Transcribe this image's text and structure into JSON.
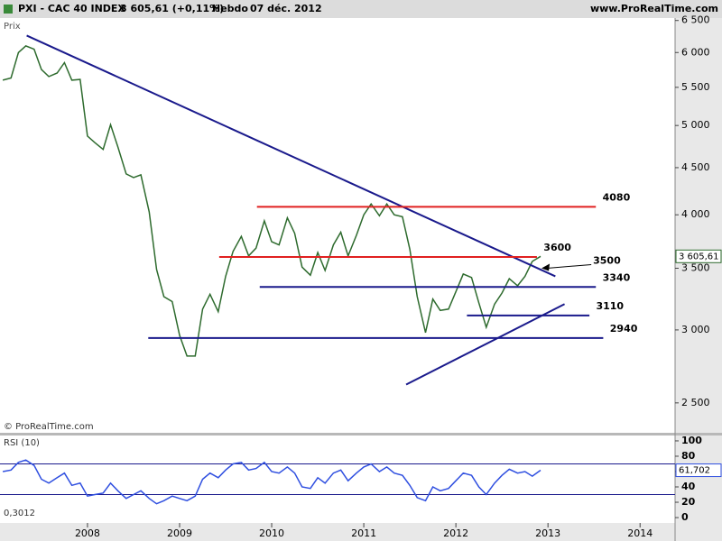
{
  "chart_data": [
    {
      "type": "line",
      "title": "PXI - CAC 40 INDEX",
      "quote": "3 605,61 (+0,11%)",
      "period": "Hebdo",
      "date": "07 déc. 2012",
      "site": "www.ProRealTime.com",
      "ylabel": "Prix",
      "watermark": "© ProRealTime.com",
      "log_scale": true,
      "ylim": [
        2320,
        6540
      ],
      "xlim": [
        2007.05,
        2014.38
      ],
      "yticks": [
        {
          "value": 2500,
          "label": "2 500"
        },
        {
          "value": 3000,
          "label": "3 000"
        },
        {
          "value": 3500,
          "label": "3 500"
        },
        {
          "value": 4000,
          "label": "4 000"
        },
        {
          "value": 4500,
          "label": "4 500"
        },
        {
          "value": 5000,
          "label": "5 000"
        },
        {
          "value": 5500,
          "label": "5 500"
        },
        {
          "value": 6000,
          "label": "6 000"
        },
        {
          "value": 6500,
          "label": "6 500"
        }
      ],
      "xticks": [
        2008,
        2009,
        2010,
        2011,
        2012,
        2013,
        2014
      ],
      "last_label": "3 605,61",
      "x": [
        2007.08,
        2007.17,
        2007.25,
        2007.33,
        2007.42,
        2007.5,
        2007.58,
        2007.67,
        2007.75,
        2007.83,
        2007.92,
        2008,
        2008.08,
        2008.17,
        2008.25,
        2008.33,
        2008.42,
        2008.5,
        2008.58,
        2008.67,
        2008.75,
        2008.83,
        2008.92,
        2009,
        2009.08,
        2009.17,
        2009.25,
        2009.33,
        2009.42,
        2009.5,
        2009.58,
        2009.67,
        2009.75,
        2009.83,
        2009.92,
        2010,
        2010.08,
        2010.17,
        2010.25,
        2010.33,
        2010.42,
        2010.5,
        2010.58,
        2010.67,
        2010.75,
        2010.83,
        2010.92,
        2011,
        2011.08,
        2011.17,
        2011.25,
        2011.33,
        2011.42,
        2011.5,
        2011.58,
        2011.67,
        2011.75,
        2011.83,
        2011.92,
        2012,
        2012.08,
        2012.17,
        2012.25,
        2012.33,
        2012.42,
        2012.5,
        2012.58,
        2012.67,
        2012.75,
        2012.83,
        2012.92
      ],
      "series": [
        {
          "name": "CAC 40",
          "color": "#2e6b2e",
          "values": [
            5600,
            5630,
            6000,
            6100,
            6050,
            5750,
            5650,
            5700,
            5850,
            5600,
            5610,
            4870,
            4790,
            4710,
            5010,
            4740,
            4430,
            4390,
            4420,
            4030,
            3490,
            3260,
            3220,
            2960,
            2810,
            2810,
            3160,
            3280,
            3140,
            3430,
            3650,
            3790,
            3610,
            3680,
            3940,
            3740,
            3710,
            3970,
            3820,
            3510,
            3440,
            3640,
            3480,
            3710,
            3830,
            3610,
            3800,
            4000,
            4110,
            3990,
            4110,
            4000,
            3980,
            3670,
            3260,
            2980,
            3240,
            3150,
            3160,
            3300,
            3450,
            3420,
            3210,
            3020,
            3200,
            3290,
            3410,
            3350,
            3430,
            3560,
            3605.61
          ]
        }
      ],
      "levels": [
        {
          "value": 4080,
          "x": [
            2009.84,
            2013.52
          ],
          "color": "#e02020"
        },
        {
          "value": 3600,
          "x": [
            2009.43,
            2012.88
          ],
          "color": "#e02020"
        },
        {
          "value": 3500,
          "arrow": [
            2013.47,
            2012.93
          ],
          "color": "#000000"
        },
        {
          "value": 3340,
          "x": [
            2009.87,
            2013.52
          ],
          "color": "#1a1a8c"
        },
        {
          "value": 3110,
          "x": [
            2012.12,
            2013.45
          ],
          "color": "#1a1a8c"
        },
        {
          "value": 2940,
          "x": [
            2008.66,
            2013.6
          ],
          "color": "#1a1a8c"
        }
      ],
      "trendlines": [
        {
          "x": [
            2007.34,
            2013.08
          ],
          "y": [
            6260,
            3430
          ],
          "color": "#1a1a8c"
        },
        {
          "x": [
            2011.46,
            2013.18
          ],
          "y": [
            2617,
            3200
          ],
          "color": "#1a1a8c"
        }
      ]
    },
    {
      "type": "line",
      "title": "RSI (10)",
      "footer": "0,3012",
      "ylim": [
        -7,
        107
      ],
      "xlim": [
        2007.05,
        2014.38
      ],
      "yticks": [
        0,
        20,
        40,
        60,
        80,
        100
      ],
      "bands": [
        30,
        70
      ],
      "last_label": "61,702",
      "series": [
        {
          "name": "RSI",
          "color": "#2f4fe0",
          "values": [
            60,
            62,
            72,
            75,
            68,
            50,
            45,
            52,
            58,
            42,
            45,
            28,
            30,
            32,
            45,
            35,
            25,
            30,
            35,
            25,
            18,
            22,
            28,
            25,
            22,
            28,
            50,
            58,
            52,
            62,
            70,
            72,
            62,
            64,
            72,
            60,
            58,
            66,
            58,
            40,
            38,
            52,
            45,
            58,
            62,
            48,
            58,
            66,
            70,
            60,
            66,
            58,
            55,
            42,
            26,
            22,
            40,
            35,
            38,
            48,
            58,
            55,
            40,
            30,
            45,
            55,
            63,
            58,
            60,
            54,
            61.702
          ]
        }
      ]
    }
  ]
}
